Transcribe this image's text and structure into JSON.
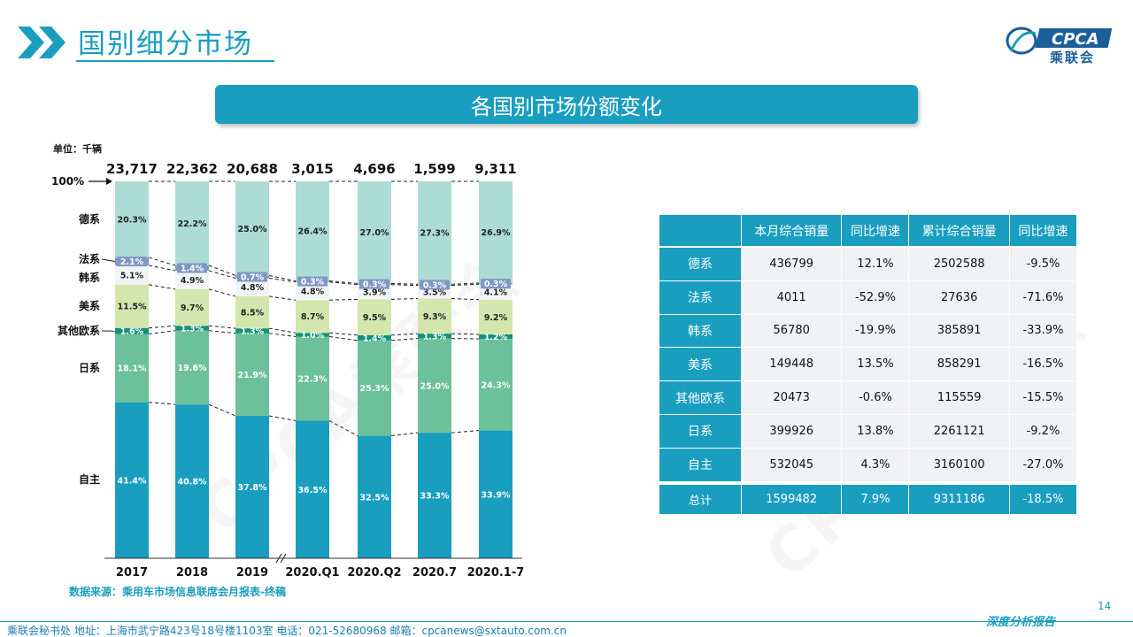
{
  "header": {
    "title": "国别细分市场",
    "logo_text": "CPCA",
    "logo_sub": "乘联会",
    "banner": "各国别市场份额变化"
  },
  "colors": {
    "accent": "#1a9ec0",
    "zizhu": "#1a9ec0",
    "rixi": "#6cc19a",
    "qita": "#13917b",
    "meixi": "#d2e6ad",
    "hanxi": "#f2f4f6",
    "faxi": "#7f97c4",
    "dexi": "#acdcd3"
  },
  "chart_data": {
    "type": "bar",
    "stacked": "percent",
    "unit_label": "单位：千辆",
    "y_top_label": "100%",
    "categories": [
      "2017",
      "2018",
      "2019",
      "2020.Q1",
      "2020.Q2",
      "2020.7",
      "2020.1-7"
    ],
    "totals": [
      "23,717",
      "22,362",
      "20,688",
      "3,015",
      "4,696",
      "1,599",
      "9,311"
    ],
    "series": [
      {
        "name": "自主",
        "values": [
          41.4,
          40.8,
          37.8,
          36.5,
          32.5,
          33.3,
          33.9
        ]
      },
      {
        "name": "日系",
        "values": [
          18.1,
          19.6,
          21.9,
          22.3,
          25.3,
          25.0,
          24.3
        ]
      },
      {
        "name": "其他欧系",
        "values": [
          1.6,
          1.3,
          1.3,
          1.0,
          1.4,
          1.3,
          1.2
        ]
      },
      {
        "name": "美系",
        "values": [
          11.5,
          9.7,
          8.5,
          8.7,
          9.5,
          9.3,
          9.2
        ]
      },
      {
        "name": "韩系",
        "values": [
          5.1,
          4.9,
          4.8,
          4.8,
          3.9,
          3.5,
          4.1
        ]
      },
      {
        "name": "法系",
        "values": [
          2.1,
          1.4,
          0.7,
          0.3,
          0.3,
          0.3,
          0.3
        ]
      },
      {
        "name": "德系",
        "values": [
          20.3,
          22.2,
          25.0,
          26.4,
          27.0,
          27.3,
          26.9
        ]
      }
    ],
    "source": "数据来源：乘用车市场信息联席会月报表-终稿"
  },
  "table": {
    "headers": [
      "",
      "本月综合销量",
      "同比增速",
      "累计综合销量",
      "同比增速"
    ],
    "rows": [
      [
        "德系",
        "436799",
        "12.1%",
        "2502588",
        "-9.5%"
      ],
      [
        "法系",
        "4011",
        "-52.9%",
        "27636",
        "-71.6%"
      ],
      [
        "韩系",
        "56780",
        "-19.9%",
        "385891",
        "-33.9%"
      ],
      [
        "美系",
        "149448",
        "13.5%",
        "858291",
        "-16.5%"
      ],
      [
        "其他欧系",
        "20473",
        "-0.6%",
        "115559",
        "-15.5%"
      ],
      [
        "日系",
        "399926",
        "13.8%",
        "2261121",
        "-9.2%"
      ],
      [
        "自主",
        "532045",
        "4.3%",
        "3160100",
        "-27.0%"
      ]
    ],
    "total": [
      "总计",
      "1599482",
      "7.9%",
      "9311186",
      "-18.5%"
    ]
  },
  "footer": {
    "address": "乘联会秘书处   地址：上海市武宁路423号18号楼1103室   电话：021-52680968   邮箱：cpcanews@sxtauto.com.cn",
    "right": "深度分析报告",
    "page": "14"
  }
}
